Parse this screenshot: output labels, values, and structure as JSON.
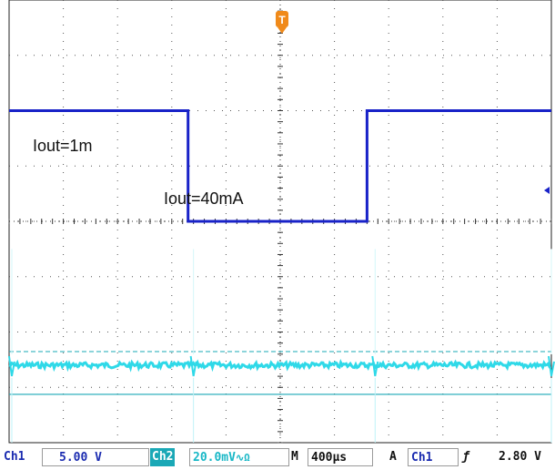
{
  "colors": {
    "ch1": "#1822c8",
    "ch2": "#2fd9e8",
    "grid": "#555555",
    "trigger": "#f08a1a",
    "ch2_label_bg": "#1aa8b6"
  },
  "trigger_marker": "T",
  "chart_data": {
    "type": "line",
    "title": "",
    "x_divisions": 10,
    "y_divisions": 8,
    "time_per_div": "400µs",
    "annotations": [
      "Iout=1m",
      "Iout=40mA"
    ],
    "series": [
      {
        "channel": "Ch1",
        "scale": "5.00 V",
        "x_div": [
          0,
          3.3,
          3.3,
          6.6,
          6.6,
          10
        ],
        "y_div": [
          2,
          2,
          0,
          0,
          2,
          2
        ]
      }
    ],
    "ch2": {
      "scale": "20.0mV",
      "ripple_level_div": -2.6,
      "spike_positions_div": [
        0.05,
        3.4,
        6.75,
        10.0
      ]
    }
  },
  "status": {
    "ch1_label": "Ch1",
    "ch1_scale": "5.00 V",
    "ch2_label": "Ch2",
    "ch2_scale": "20.0mV",
    "bw_symbol": "∿Ω",
    "time_label": "M",
    "time_scale": "400µs",
    "trigger_mode": "A",
    "trigger_channel": "Ch1",
    "trigger_slope": "ƒ",
    "trigger_level": "2.80 V"
  }
}
